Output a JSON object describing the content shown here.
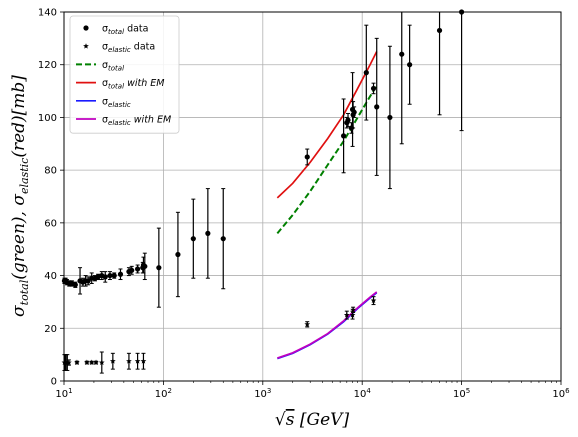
{
  "chart_data": {
    "type": "scatter",
    "title": "",
    "xlabel_parts": [
      "√",
      "s",
      " [GeV]"
    ],
    "ylabel_parts": [
      "σ",
      "total",
      "(green), ",
      "σ",
      "elastic",
      "(red)[mb]"
    ],
    "x_scale": "log",
    "xlim": [
      10,
      1000000
    ],
    "ylim": [
      0,
      140
    ],
    "grid": true,
    "legend_position": "upper-left",
    "x_ticks": [
      {
        "value": 10,
        "base": "10",
        "exp": "1"
      },
      {
        "value": 100,
        "base": "10",
        "exp": "2"
      },
      {
        "value": 1000,
        "base": "10",
        "exp": "3"
      },
      {
        "value": 10000,
        "base": "10",
        "exp": "4"
      },
      {
        "value": 100000,
        "base": "10",
        "exp": "5"
      },
      {
        "value": 1000000,
        "base": "10",
        "exp": "6"
      }
    ],
    "y_ticks": [
      0,
      20,
      40,
      60,
      80,
      100,
      120,
      140
    ],
    "legend": [
      {
        "kind": "dot",
        "sym": "σ",
        "sub": "total",
        "rest": " data",
        "rest_italic": false,
        "color": "#000000"
      },
      {
        "kind": "star",
        "sym": "σ",
        "sub": "elastic",
        "rest": " data",
        "rest_italic": false,
        "color": "#000000"
      },
      {
        "kind": "dash",
        "sym": "σ",
        "sub": "total",
        "rest": "",
        "rest_italic": false,
        "color": "#008000"
      },
      {
        "kind": "line",
        "sym": "σ",
        "sub": "total",
        "rest": " with EM",
        "rest_italic": true,
        "color": "#e01010"
      },
      {
        "kind": "line",
        "sym": "σ",
        "sub": "elastic",
        "rest": "",
        "rest_italic": false,
        "color": "#1a1aff"
      },
      {
        "kind": "line",
        "sym": "σ",
        "sub": "elastic",
        "rest": " with EM",
        "rest_italic": true,
        "color": "#c000c0"
      }
    ],
    "series": [
      {
        "kind": "points",
        "marker": "dot",
        "color": "#000000",
        "points": [
          [
            10.1,
            38,
            1
          ],
          [
            10.4,
            38,
            1
          ],
          [
            10.7,
            37.5,
            1
          ],
          [
            11.3,
            37,
            1
          ],
          [
            12.0,
            37,
            1
          ],
          [
            13.0,
            36.5,
            1
          ],
          [
            14.5,
            38,
            5
          ],
          [
            15.5,
            37.5,
            1.5
          ],
          [
            16.5,
            38,
            2
          ],
          [
            17.5,
            38,
            1.5
          ],
          [
            19.0,
            39,
            2
          ],
          [
            20.5,
            39,
            1
          ],
          [
            22.0,
            39.5,
            1
          ],
          [
            24.0,
            40,
            1.5
          ],
          [
            26.0,
            39.5,
            2
          ],
          [
            29.0,
            40,
            1.5
          ],
          [
            32.0,
            40,
            1
          ],
          [
            37.0,
            40.5,
            2
          ],
          [
            45.0,
            41.5,
            1.5
          ],
          [
            48.0,
            42,
            1.5
          ],
          [
            55.0,
            42.5,
            1.5
          ],
          [
            62.0,
            43,
            2
          ],
          [
            63.0,
            44,
            3
          ],
          [
            65.0,
            43.5,
            5
          ],
          [
            90.0,
            43,
            15
          ],
          [
            140.0,
            48,
            16
          ],
          [
            200.0,
            54,
            15
          ],
          [
            280.0,
            56,
            17
          ],
          [
            400.0,
            54,
            19
          ],
          [
            2800.0,
            85,
            3
          ],
          [
            6500.0,
            93,
            14
          ],
          [
            7000.0,
            98,
            2
          ],
          [
            7200.0,
            99,
            2.5
          ],
          [
            7800.0,
            96,
            2
          ],
          [
            8000.0,
            103,
            14
          ],
          [
            8100.0,
            101,
            5
          ],
          [
            8300.0,
            102,
            2
          ],
          [
            11000.0,
            117,
            18
          ],
          [
            13000.0,
            111,
            2
          ],
          [
            14000.0,
            104,
            26
          ],
          [
            19000.0,
            100,
            27
          ],
          [
            25000.0,
            124,
            34
          ],
          [
            30000.0,
            120,
            15
          ],
          [
            60000.0,
            133,
            32
          ],
          [
            100000.0,
            140,
            45
          ]
        ]
      },
      {
        "kind": "points",
        "marker": "star",
        "color": "#000000",
        "points": [
          [
            10.1,
            7,
            3
          ],
          [
            10.3,
            7,
            3
          ],
          [
            10.5,
            7,
            3
          ],
          [
            10.8,
            7,
            3
          ],
          [
            11.2,
            7,
            1
          ],
          [
            13.5,
            7,
            0.5
          ],
          [
            17.0,
            7,
            0.5
          ],
          [
            19.0,
            7,
            0.5
          ],
          [
            21.0,
            7,
            0.5
          ],
          [
            24.0,
            7,
            4
          ],
          [
            31.0,
            7.5,
            3
          ],
          [
            45.0,
            7.5,
            3
          ],
          [
            55.0,
            7.5,
            3
          ],
          [
            63.0,
            7.5,
            3
          ],
          [
            2800.0,
            21.5,
            1
          ],
          [
            7000.0,
            25,
            1.5
          ],
          [
            8000.0,
            25,
            1.5
          ],
          [
            8100.0,
            27,
            1
          ],
          [
            13000.0,
            30.5,
            1.5
          ]
        ]
      },
      {
        "kind": "curve",
        "style": "dash",
        "color": "#008000",
        "name": "",
        "x": [
          1400,
          2000,
          3000,
          4500,
          6500,
          9000,
          12000,
          14000
        ],
        "y": [
          56,
          63,
          72,
          82,
          91,
          100,
          108,
          112
        ]
      },
      {
        "kind": "curve",
        "style": "line",
        "color": "#e01010",
        "name": "",
        "x": [
          1400,
          2000,
          3000,
          4500,
          6500,
          9000,
          12000,
          14000
        ],
        "y": [
          69.5,
          75,
          83,
          92,
          101,
          111,
          120,
          125
        ]
      },
      {
        "kind": "curve",
        "style": "line",
        "color": "#1a1aff",
        "name": "",
        "x": [
          1400,
          2000,
          3000,
          4500,
          6500,
          9000,
          12000,
          14000
        ],
        "y": [
          8.5,
          10.5,
          13.8,
          17.8,
          22.5,
          27.5,
          31.5,
          33.5
        ]
      },
      {
        "kind": "curve",
        "style": "line",
        "color": "#c000c0",
        "name": "",
        "x": [
          1400,
          2000,
          3000,
          4500,
          6500,
          9000,
          12000,
          14000
        ],
        "y": [
          8.7,
          10.7,
          14,
          18,
          22.8,
          27.8,
          31.8,
          33.8
        ]
      }
    ]
  }
}
